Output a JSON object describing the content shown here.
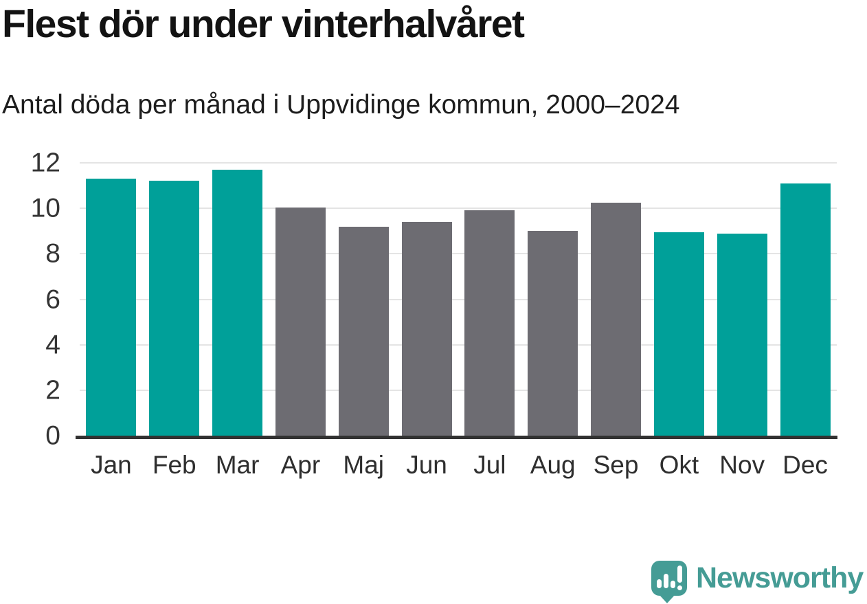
{
  "header": {
    "title": "Flest dör under vinterhalvåret",
    "subtitle": "Antal döda per månad i Uppvidinge kommun, 2000–2024"
  },
  "chart_data": {
    "type": "bar",
    "title": "Flest dör under vinterhalvåret",
    "subtitle": "Antal döda per månad i Uppvidinge kommun, 2000–2024",
    "categories": [
      "Jan",
      "Feb",
      "Mar",
      "Apr",
      "Maj",
      "Jun",
      "Jul",
      "Aug",
      "Sep",
      "Okt",
      "Nov",
      "Dec"
    ],
    "values": [
      11.3,
      11.2,
      11.7,
      10.05,
      9.2,
      9.4,
      9.9,
      9.0,
      10.25,
      8.95,
      8.9,
      11.1
    ],
    "bar_colors": [
      "#00a099",
      "#00a099",
      "#00a099",
      "#6d6c72",
      "#6d6c72",
      "#6d6c72",
      "#6d6c72",
      "#6d6c72",
      "#6d6c72",
      "#00a099",
      "#00a099",
      "#00a099"
    ],
    "xlabel": "",
    "ylabel": "",
    "ylim": [
      0,
      12
    ],
    "yticks": [
      0,
      2,
      4,
      6,
      8,
      10,
      12
    ],
    "grid": "horizontal",
    "legend": "none"
  },
  "colors": {
    "accent_teal": "#00a099",
    "neutral_gray": "#6d6c72",
    "gridline": "#e4e4e4",
    "axis_line": "#323232",
    "text": "#131313",
    "brand_teal": "#459c95"
  },
  "footer": {
    "brand": "Newsworthy"
  }
}
